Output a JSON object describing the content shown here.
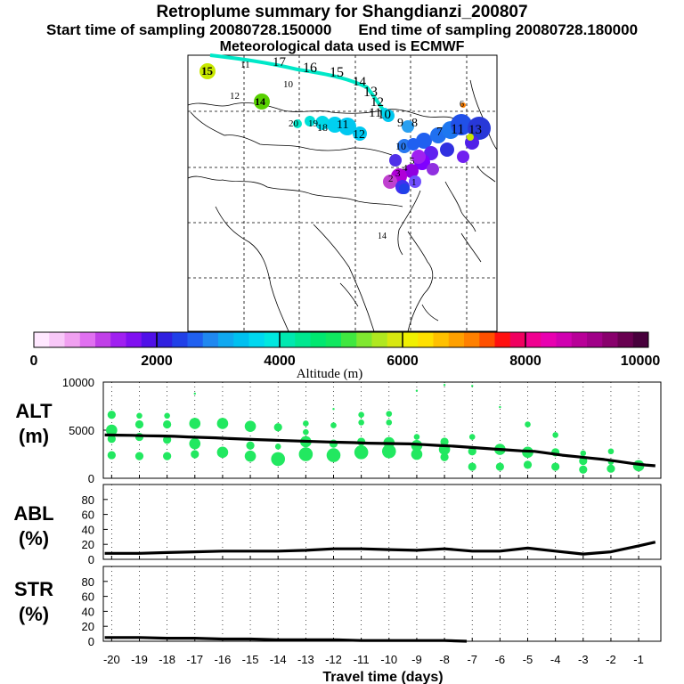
{
  "title": "Retroplume summary for Shangdianzi_200807",
  "start_label": "Start time of sampling 20080728.150000",
  "end_label": "End time of sampling 20080728.180000",
  "met_label": "Meteorological data used is ECMWF",
  "map": {
    "labels": [
      {
        "t": "15",
        "c": "#c8e800",
        "big": 1
      },
      {
        "t": "11",
        "c": "#ffb000"
      },
      {
        "t": "17",
        "c": "#ffffff"
      },
      {
        "t": "16",
        "c": "#ffffff"
      },
      {
        "t": "15",
        "c": "#ffffff"
      },
      {
        "t": "14",
        "c": "#ffffff"
      },
      {
        "t": "10",
        "c": "#ffe000"
      },
      {
        "t": "13",
        "c": "#ffffff"
      },
      {
        "t": "12",
        "c": "#ffff40"
      },
      {
        "t": "14",
        "c": "#58d000",
        "big": 1
      },
      {
        "t": "12",
        "c": "#ffffff"
      },
      {
        "t": "11",
        "c": "#ffffff"
      },
      {
        "t": "10",
        "c": "#ffffff"
      },
      {
        "t": "9",
        "c": "#ffffff"
      },
      {
        "t": "8",
        "c": "#ffffff"
      },
      {
        "t": "6",
        "c": "#ff8000"
      },
      {
        "t": "20",
        "c": "#00e6c8"
      },
      {
        "t": "19",
        "c": "#00e0d8"
      },
      {
        "t": "18",
        "c": "#00d8e8"
      },
      {
        "t": "11",
        "c": "#00d0f0"
      },
      {
        "t": "12",
        "c": "#00c8f0"
      },
      {
        "t": "7",
        "c": "#1e78f0"
      },
      {
        "t": "11",
        "c": "#2050e8"
      },
      {
        "t": "13",
        "c": "#2838d8"
      },
      {
        "t": "10",
        "c": "#2878f0"
      },
      {
        "t": "5",
        "c": "#9000e0"
      },
      {
        "t": "4",
        "c": "#8000ff"
      },
      {
        "t": "3",
        "c": "#b000d8"
      },
      {
        "t": "2",
        "c": "#c040d0"
      },
      {
        "t": "1",
        "c": "#7050ff"
      },
      {
        "t": "14",
        "c": "#00d0f0"
      }
    ]
  },
  "colorbar": {
    "ticks": [
      "0",
      "2000",
      "4000",
      "6000",
      "8000",
      "10000"
    ],
    "label": "Altitude (m)",
    "colors": [
      "#ffe8ff",
      "#f8c8f8",
      "#f0a0f0",
      "#e070f0",
      "#c040e8",
      "#a020f0",
      "#8010f0",
      "#5010e8",
      "#3020e0",
      "#2040e8",
      "#2060f0",
      "#2088f0",
      "#10a8f0",
      "#00c0f0",
      "#00d8f0",
      "#00e8e0",
      "#00e8b0",
      "#00e890",
      "#00e870",
      "#10e860",
      "#40e840",
      "#80e830",
      "#b0e820",
      "#d8e810",
      "#f0f000",
      "#ffe000",
      "#ffc000",
      "#ffa000",
      "#ff8000",
      "#ff5000",
      "#ff1010",
      "#f00060",
      "#f00090",
      "#e800b0",
      "#d000b0",
      "#b80098",
      "#a00088",
      "#88006c",
      "#680050",
      "#48003c"
    ]
  },
  "chart_data": [
    {
      "type": "line",
      "panel": "ALT",
      "title": "ALT (m)",
      "ylabel_line1": "ALT",
      "ylabel_line2": "(m)",
      "ylim": [
        0,
        10000
      ],
      "yticks": [
        "0",
        "5000",
        "10000"
      ],
      "x": [
        -20.25,
        -19.75,
        -19.25,
        -18.75,
        -18.25,
        -17.75,
        -17.25,
        -16.75,
        -16.25,
        -15.75,
        -15.25,
        -14.75,
        -14.25,
        -13.75,
        -13.25,
        -12.75,
        -12.25,
        -11.75,
        -11.25,
        -10.75,
        -10.25,
        -9.75,
        -9.25,
        -8.75,
        -8.25,
        -7.75,
        -7.25,
        -6.75,
        -6.25,
        -5.75,
        -5.25,
        -4.75,
        -4.25,
        -3.75,
        -3.25,
        -2.75,
        -2.25,
        -1.75,
        -1.25,
        -0.75,
        -0.4
      ],
      "mean_altitude": [
        4500,
        4480,
        4460,
        4420,
        4400,
        4360,
        4300,
        4250,
        4200,
        4130,
        4070,
        4020,
        3970,
        3920,
        3870,
        3820,
        3780,
        3740,
        3700,
        3650,
        3620,
        3600,
        3570,
        3500,
        3420,
        3350,
        3250,
        3150,
        3050,
        2950,
        2850,
        2800,
        2600,
        2400,
        2250,
        2100,
        1950,
        1750,
        1550,
        1380,
        1300
      ],
      "scatter": [
        {
          "x": -20,
          "y": 6600,
          "s": 2
        },
        {
          "x": -20,
          "y": 5000,
          "s": 3
        },
        {
          "x": -20,
          "y": 4100,
          "s": 2
        },
        {
          "x": -20,
          "y": 2400,
          "s": 2
        },
        {
          "x": -19,
          "y": 6500,
          "s": 1
        },
        {
          "x": -19,
          "y": 5600,
          "s": 2
        },
        {
          "x": -19,
          "y": 4300,
          "s": 2
        },
        {
          "x": -19,
          "y": 2300,
          "s": 2
        },
        {
          "x": -18,
          "y": 6500,
          "s": 1
        },
        {
          "x": -18,
          "y": 5600,
          "s": 2
        },
        {
          "x": -18,
          "y": 4000,
          "s": 2
        },
        {
          "x": -18,
          "y": 2300,
          "s": 2
        },
        {
          "x": -17,
          "y": 8800,
          "s": 0
        },
        {
          "x": -17,
          "y": 5700,
          "s": 3
        },
        {
          "x": -17,
          "y": 3600,
          "s": 3
        },
        {
          "x": -17,
          "y": 2500,
          "s": 2
        },
        {
          "x": -16,
          "y": 5700,
          "s": 3
        },
        {
          "x": -16,
          "y": 2700,
          "s": 3
        },
        {
          "x": -15,
          "y": 5400,
          "s": 3
        },
        {
          "x": -15,
          "y": 3400,
          "s": 2
        },
        {
          "x": -15,
          "y": 2300,
          "s": 3
        },
        {
          "x": -14,
          "y": 5300,
          "s": 2
        },
        {
          "x": -14,
          "y": 3300,
          "s": 1
        },
        {
          "x": -14,
          "y": 2000,
          "s": 4
        },
        {
          "x": -13,
          "y": 5700,
          "s": 1
        },
        {
          "x": -13,
          "y": 4800,
          "s": 1
        },
        {
          "x": -13,
          "y": 3800,
          "s": 3
        },
        {
          "x": -13,
          "y": 2500,
          "s": 4
        },
        {
          "x": -12,
          "y": 7200,
          "s": 0
        },
        {
          "x": -12,
          "y": 5500,
          "s": 1
        },
        {
          "x": -12,
          "y": 3600,
          "s": 2
        },
        {
          "x": -12,
          "y": 2400,
          "s": 4
        },
        {
          "x": -11,
          "y": 6600,
          "s": 1
        },
        {
          "x": -11,
          "y": 5800,
          "s": 1
        },
        {
          "x": -11,
          "y": 3800,
          "s": 2
        },
        {
          "x": -11,
          "y": 2700,
          "s": 4
        },
        {
          "x": -10,
          "y": 6700,
          "s": 1
        },
        {
          "x": -10,
          "y": 5800,
          "s": 1
        },
        {
          "x": -10,
          "y": 3700,
          "s": 3
        },
        {
          "x": -10,
          "y": 2800,
          "s": 4
        },
        {
          "x": -9,
          "y": 9100,
          "s": 0
        },
        {
          "x": -9,
          "y": 4300,
          "s": 1
        },
        {
          "x": -9,
          "y": 3400,
          "s": 3
        },
        {
          "x": -9,
          "y": 2500,
          "s": 3
        },
        {
          "x": -8,
          "y": 9700,
          "s": 0
        },
        {
          "x": -8,
          "y": 3800,
          "s": 2
        },
        {
          "x": -8,
          "y": 3000,
          "s": 3
        },
        {
          "x": -8,
          "y": 2200,
          "s": 2
        },
        {
          "x": -7,
          "y": 9600,
          "s": 0
        },
        {
          "x": -7,
          "y": 4300,
          "s": 1
        },
        {
          "x": -7,
          "y": 2800,
          "s": 2
        },
        {
          "x": -7,
          "y": 1200,
          "s": 2
        },
        {
          "x": -6,
          "y": 7400,
          "s": 0
        },
        {
          "x": -6,
          "y": 3000,
          "s": 3
        },
        {
          "x": -6,
          "y": 1200,
          "s": 2
        },
        {
          "x": -5,
          "y": 5600,
          "s": 1
        },
        {
          "x": -5,
          "y": 2700,
          "s": 3
        },
        {
          "x": -5,
          "y": 1400,
          "s": 2
        },
        {
          "x": -4,
          "y": 4500,
          "s": 1
        },
        {
          "x": -4,
          "y": 2700,
          "s": 2
        },
        {
          "x": -4,
          "y": 1200,
          "s": 2
        },
        {
          "x": -3,
          "y": 2600,
          "s": 1
        },
        {
          "x": -3,
          "y": 1800,
          "s": 2
        },
        {
          "x": -3,
          "y": 900,
          "s": 2
        },
        {
          "x": -2,
          "y": 2800,
          "s": 1
        },
        {
          "x": -2,
          "y": 1700,
          "s": 1
        },
        {
          "x": -2,
          "y": 1000,
          "s": 2
        },
        {
          "x": -1,
          "y": 1300,
          "s": 3
        }
      ]
    },
    {
      "type": "line",
      "panel": "ABL",
      "title": "ABL (%)",
      "ylabel_line1": "ABL",
      "ylabel_line2": "(%)",
      "ylim": [
        0,
        100
      ],
      "yticks": [
        "0",
        "20",
        "40",
        "60",
        "80"
      ],
      "x": [
        -20.25,
        -19,
        -18,
        -17,
        -16,
        -15,
        -14,
        -13,
        -12,
        -11,
        -10,
        -9,
        -8,
        -7,
        -6,
        -5,
        -4,
        -3,
        -2,
        -1,
        -0.4
      ],
      "values": [
        8,
        8,
        9,
        10,
        11,
        11,
        11,
        12,
        14,
        14,
        13,
        12,
        14,
        11,
        11,
        15,
        11,
        7,
        10,
        18,
        23
      ]
    },
    {
      "type": "line",
      "panel": "STR",
      "title": "STR (%)",
      "ylabel_line1": "STR",
      "ylabel_line2": "(%)",
      "ylim": [
        0,
        100
      ],
      "yticks": [
        "0",
        "20",
        "40",
        "60",
        "80"
      ],
      "x": [
        -20.25,
        -19,
        -18,
        -17,
        -16,
        -15,
        -14,
        -13,
        -12,
        -11,
        -10,
        -9,
        -8,
        -7.2
      ],
      "values": [
        5,
        5,
        4,
        4,
        3,
        3,
        2,
        2,
        2,
        1,
        1,
        1,
        1,
        0
      ]
    }
  ],
  "xaxis": {
    "ticks": [
      "-20",
      "-19",
      "-18",
      "-17",
      "-16",
      "-15",
      "-14",
      "-13",
      "-12",
      "-11",
      "-10",
      "-9",
      "-8",
      "-7",
      "-6",
      "-5",
      "-4",
      "-3",
      "-2",
      "-1"
    ],
    "label": "Travel time (days)"
  }
}
